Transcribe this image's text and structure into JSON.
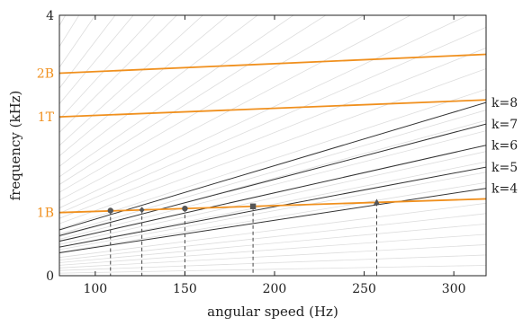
{
  "chart_data": {
    "type": "line",
    "title": "",
    "xlabel": "angular speed (Hz)",
    "ylabel": "frequency (kHz)",
    "xlim": [
      80,
      318
    ],
    "ylim": [
      0,
      4
    ],
    "x_ticks": [
      100,
      150,
      200,
      250,
      300
    ],
    "y_ticks": [
      0,
      4
    ],
    "grid": false,
    "order_lines": {
      "color": "#333333",
      "series": [
        {
          "name": "k=4",
          "x": [
            80,
            318
          ],
          "y": [
            0.352,
            1.342
          ]
        },
        {
          "name": "k=5",
          "x": [
            80,
            318
          ],
          "y": [
            0.44,
            1.668
          ]
        },
        {
          "name": "k=6",
          "x": [
            80,
            318
          ],
          "y": [
            0.53,
            2.004
          ]
        },
        {
          "name": "k=7",
          "x": [
            80,
            318
          ],
          "y": [
            0.616,
            2.33
          ]
        },
        {
          "name": "k=8",
          "x": [
            80,
            318
          ],
          "y": [
            0.704,
            2.66
          ]
        }
      ]
    },
    "background_order_lines": {
      "color": "#dddddd",
      "slopes_khz_per_hz": [
        0.0005,
        0.001,
        0.0015,
        0.002,
        0.0025,
        0.003,
        0.0035,
        0.0045,
        0.005,
        0.0055,
        0.006,
        0.007,
        0.0075,
        0.008,
        0.009,
        0.01,
        0.011,
        0.012,
        0.013,
        0.0145,
        0.016,
        0.0175,
        0.019,
        0.021,
        0.023,
        0.025,
        0.0275,
        0.03,
        0.033,
        0.036,
        0.04,
        0.044,
        0.048,
        0.053,
        0.058,
        0.064,
        0.07
      ]
    },
    "modes": {
      "color": "#f0901e",
      "series": [
        {
          "name": "1B",
          "x": [
            80,
            318
          ],
          "y": [
            0.97,
            1.18
          ]
        },
        {
          "name": "1T",
          "x": [
            80,
            318
          ],
          "y": [
            2.44,
            2.7
          ]
        },
        {
          "name": "2B",
          "x": [
            80,
            318
          ],
          "y": [
            3.11,
            3.4
          ]
        }
      ]
    },
    "crossings": {
      "color": "#555555",
      "points": [
        {
          "order": "k=8",
          "mode": "1B",
          "x": 108.5,
          "y": 1.0,
          "marker": "circle"
        },
        {
          "order": "k=7",
          "mode": "1B",
          "x": 126.0,
          "y": 1.011,
          "marker": "diamond"
        },
        {
          "order": "k=6",
          "mode": "1B",
          "x": 150.0,
          "y": 1.032,
          "marker": "circle"
        },
        {
          "order": "k=5",
          "mode": "1B",
          "x": 188.0,
          "y": 1.065,
          "marker": "square"
        },
        {
          "order": "k=4",
          "mode": "1B",
          "x": 257.0,
          "y": 1.126,
          "marker": "triangle"
        }
      ]
    }
  }
}
